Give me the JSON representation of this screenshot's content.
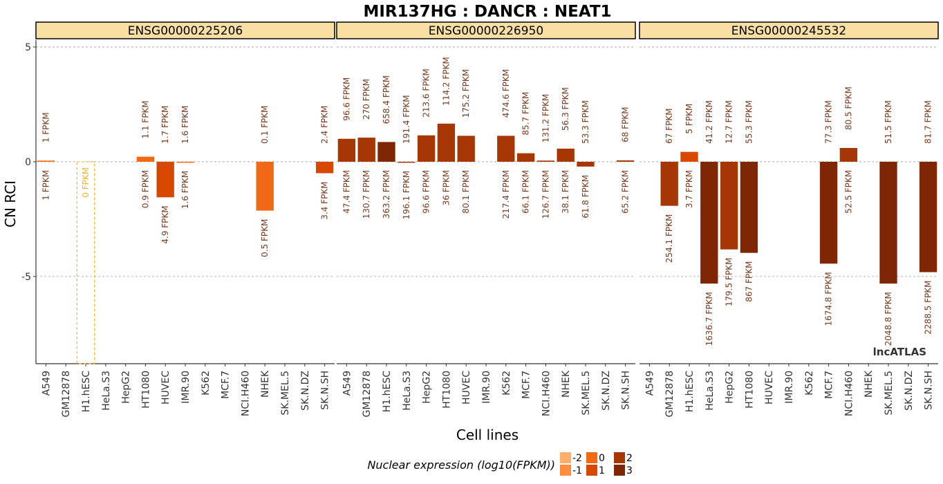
{
  "chart_data": {
    "type": "bar",
    "title": "MIR137HG : DANCR : NEAT1",
    "xlabel": "Cell lines",
    "ylabel": "CN RCI",
    "ylim": [
      -8.8,
      5.3
    ],
    "yticks": [
      5,
      0,
      -5
    ],
    "grid": true,
    "watermark": "lncATLAS",
    "categories": [
      "A549",
      "GM12878",
      "H1.hESC",
      "HeLa.S3",
      "HepG2",
      "HT1080",
      "HUVEC",
      "IMR.90",
      "K562",
      "MCF.7",
      "NCI.H460",
      "NHEK",
      "SK.MEL.5",
      "SK.N.DZ",
      "SK.N.SH"
    ],
    "legend": {
      "title": "Nuclear expression (log10(FPKM))",
      "position": "bottom",
      "entries": [
        {
          "label": "-2",
          "color": "#fdae6b"
        },
        {
          "label": "-1",
          "color": "#fd8d3c"
        },
        {
          "label": "0",
          "color": "#f16913"
        },
        {
          "label": "1",
          "color": "#d94801"
        },
        {
          "label": "2",
          "color": "#a63603"
        },
        {
          "label": "3",
          "color": "#7f2704"
        }
      ]
    },
    "panels": [
      {
        "gene": "ENSG00000225206",
        "bars": [
          {
            "cat": "A549",
            "value": 0.05,
            "top": "1 FPKM",
            "bottom": "1 FPKM",
            "nuc_log": 0.0
          },
          {
            "cat": "H1.hESC",
            "value": null,
            "na": true,
            "na_label": "0 FPKM"
          },
          {
            "cat": "HT1080",
            "value": 0.22,
            "top": "1.1 FPKM",
            "bottom": "0.9 FPKM",
            "nuc_log": 0.04
          },
          {
            "cat": "HUVEC",
            "value": -1.55,
            "top": "1.7 FPKM",
            "bottom": "4.9 FPKM",
            "nuc_log": 0.69
          },
          {
            "cat": "IMR.90",
            "value": -0.03,
            "top": "1.6 FPKM",
            "bottom": "1.6 FPKM",
            "nuc_log": 0.2
          },
          {
            "cat": "NHEK",
            "value": -2.13,
            "top": "0.1 FPKM",
            "bottom": "0.5 FPKM",
            "nuc_log": -0.3
          },
          {
            "cat": "SK.N.SH",
            "value": -0.5,
            "top": "2.4 FPKM",
            "bottom": "3.4 FPKM",
            "nuc_log": 0.53
          }
        ]
      },
      {
        "gene": "ENSG00000226950",
        "bars": [
          {
            "cat": "A549",
            "value": 1.0,
            "top": "96.6 FPKM",
            "bottom": "47.4 FPKM",
            "nuc_log": 1.68
          },
          {
            "cat": "GM12878",
            "value": 1.05,
            "top": "270 FPKM",
            "bottom": "130.7 FPKM",
            "nuc_log": 2.12
          },
          {
            "cat": "H1.hESC",
            "value": 0.86,
            "top": "658.4 FPKM",
            "bottom": "363.2 FPKM",
            "nuc_log": 2.56
          },
          {
            "cat": "HeLa.S3",
            "value": -0.03,
            "top": "191.4 FPKM",
            "bottom": "196.1 FPKM",
            "nuc_log": 2.29
          },
          {
            "cat": "HepG2",
            "value": 1.15,
            "top": "213.6 FPKM",
            "bottom": "96.6 FPKM",
            "nuc_log": 1.98
          },
          {
            "cat": "HT1080",
            "value": 1.66,
            "top": "114.2 FPKM",
            "bottom": "36 FPKM",
            "nuc_log": 1.56
          },
          {
            "cat": "HUVEC",
            "value": 1.13,
            "top": "175.2 FPKM",
            "bottom": "80.1 FPKM",
            "nuc_log": 1.9
          },
          {
            "cat": "K562",
            "value": 1.13,
            "top": "474.6 FPKM",
            "bottom": "217.4 FPKM",
            "nuc_log": 2.34
          },
          {
            "cat": "MCF.7",
            "value": 0.37,
            "top": "85.7 FPKM",
            "bottom": "66.1 FPKM",
            "nuc_log": 1.82
          },
          {
            "cat": "NCI.H460",
            "value": 0.05,
            "top": "131.2 FPKM",
            "bottom": "126.7 FPKM",
            "nuc_log": 2.1
          },
          {
            "cat": "NHEK",
            "value": 0.57,
            "top": "56.3 FPKM",
            "bottom": "38.1 FPKM",
            "nuc_log": 1.58
          },
          {
            "cat": "SK.MEL.5",
            "value": -0.21,
            "top": "53.3 FPKM",
            "bottom": "61.8 FPKM",
            "nuc_log": 1.79
          },
          {
            "cat": "SK.N.SH",
            "value": 0.06,
            "top": "68 FPKM",
            "bottom": "65.2 FPKM",
            "nuc_log": 1.81
          }
        ]
      },
      {
        "gene": "ENSG00000245532",
        "bars": [
          {
            "cat": "GM12878",
            "value": -1.92,
            "top": "67 FPKM",
            "bottom": "254.1 FPKM",
            "nuc_log": 2.41
          },
          {
            "cat": "H1.hESC",
            "value": 0.43,
            "top": "5 FPKM",
            "bottom": "3.7 FPKM",
            "nuc_log": 0.57
          },
          {
            "cat": "HeLa.S3",
            "value": -5.31,
            "top": "41.2 FPKM",
            "bottom": "1636.7 FPKM",
            "nuc_log": 3.21
          },
          {
            "cat": "HepG2",
            "value": -3.82,
            "top": "12.7 FPKM",
            "bottom": "179.5 FPKM",
            "nuc_log": 2.25
          },
          {
            "cat": "HT1080",
            "value": -3.97,
            "top": "55.3 FPKM",
            "bottom": "867 FPKM",
            "nuc_log": 2.94
          },
          {
            "cat": "MCF.7",
            "value": -4.44,
            "top": "77.3 FPKM",
            "bottom": "1674.8 FPKM",
            "nuc_log": 3.22
          },
          {
            "cat": "NCI.H460",
            "value": 0.6,
            "top": "80.5 FPKM",
            "bottom": "52.5 FPKM",
            "nuc_log": 1.72
          },
          {
            "cat": "SK.MEL.5",
            "value": -5.31,
            "top": "51.5 FPKM",
            "bottom": "2048.8 FPKM",
            "nuc_log": 3.31
          },
          {
            "cat": "SK.N.SH",
            "value": -4.81,
            "top": "81.7 FPKM",
            "bottom": "2288.5 FPKM",
            "nuc_log": 3.36
          }
        ]
      }
    ]
  }
}
